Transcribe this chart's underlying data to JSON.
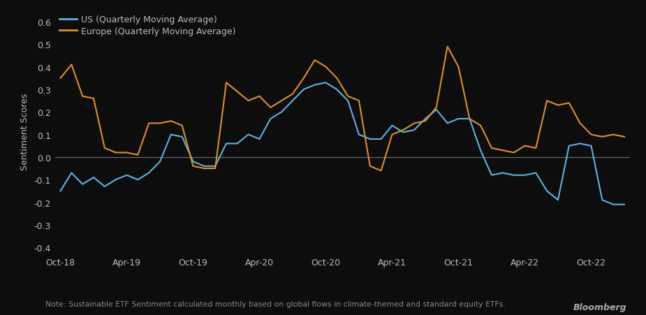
{
  "background_color": "#0d0d0d",
  "plot_bg_color": "#0d0d0d",
  "us_color": "#5ab4e5",
  "europe_color": "#e09020",
  "zero_line_color": "#666666",
  "text_color": "#bbbbbb",
  "ylabel": "Sentiment Scores",
  "ylim": [
    -0.42,
    0.65
  ],
  "yticks": [
    -0.4,
    -0.3,
    -0.2,
    -0.1,
    0.0,
    0.1,
    0.2,
    0.3,
    0.4,
    0.5,
    0.6
  ],
  "note": "Note: Sustainable ETF Sentiment calculated monthly based on global flows in climate-themed and standard equity ETFs.",
  "source": "Bloomberg",
  "legend_us": "US (Quarterly Moving Average)",
  "legend_europe": "Europe (Quarterly Moving Average)",
  "xtick_labels": [
    "Oct-18",
    "Apr-19",
    "Oct-19",
    "Apr-20",
    "Oct-20",
    "Apr-21",
    "Oct-21",
    "Apr-22",
    "Oct-22"
  ],
  "us_y": [
    -0.15,
    -0.07,
    -0.12,
    -0.09,
    -0.13,
    -0.1,
    -0.08,
    -0.1,
    -0.07,
    -0.02,
    0.1,
    0.09,
    -0.02,
    -0.04,
    -0.04,
    0.06,
    0.06,
    0.1,
    0.08,
    0.17,
    0.2,
    0.25,
    0.3,
    0.32,
    0.33,
    0.3,
    0.25,
    0.1,
    0.08,
    0.08,
    0.14,
    0.11,
    0.12,
    0.17,
    0.21,
    0.15,
    0.17,
    0.17,
    0.03,
    -0.08,
    -0.07,
    -0.08,
    -0.08,
    -0.07,
    -0.15,
    -0.19,
    0.05,
    0.06,
    0.05,
    -0.19,
    -0.21,
    -0.21
  ],
  "eu_y": [
    0.35,
    0.41,
    0.27,
    0.26,
    0.04,
    0.02,
    0.02,
    0.01,
    0.15,
    0.15,
    0.16,
    0.14,
    -0.04,
    -0.05,
    -0.05,
    0.33,
    0.29,
    0.25,
    0.27,
    0.22,
    0.25,
    0.28,
    0.35,
    0.43,
    0.4,
    0.35,
    0.27,
    0.25,
    -0.04,
    -0.06,
    0.1,
    0.12,
    0.15,
    0.16,
    0.22,
    0.49,
    0.4,
    0.17,
    0.14,
    0.04,
    0.03,
    0.02,
    0.05,
    0.04,
    0.25,
    0.23,
    0.24,
    0.15,
    0.1,
    0.09,
    0.1,
    0.09
  ]
}
